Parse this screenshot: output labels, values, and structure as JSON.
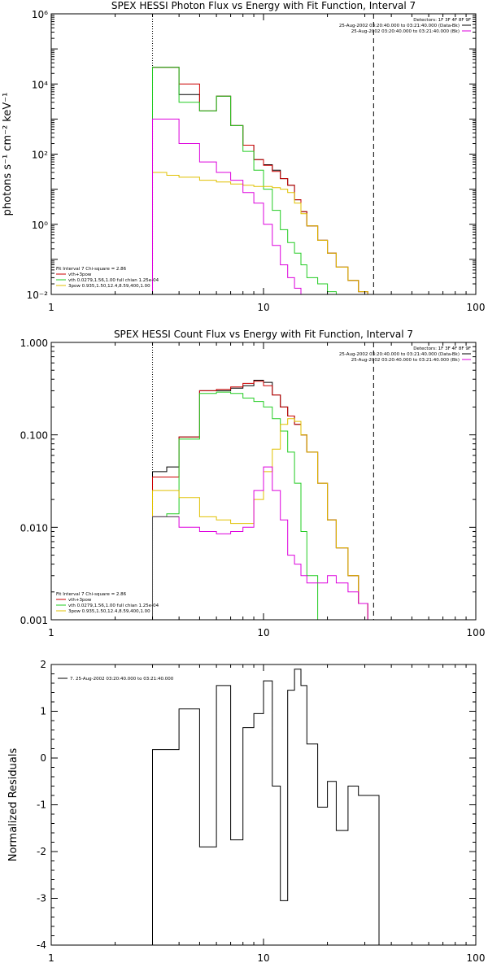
{
  "chart_data": [
    {
      "type": "line",
      "title": "SPEX HESSI Photon Flux vs Energy with Fit Function, Interval 7",
      "ylabel": "photons s⁻¹ cm⁻² keV⁻¹",
      "xlabel": "",
      "xscale": "log",
      "yscale": "log",
      "xlim": [
        1,
        100
      ],
      "ylim": [
        0.01,
        1000000
      ],
      "x_ticks": [
        "1",
        "10",
        "100"
      ],
      "y_ticks": [
        "10⁻²",
        "10⁰",
        "10²",
        "10⁴",
        "10⁶"
      ],
      "vlines": [
        {
          "x": 3,
          "style": "dotted"
        },
        {
          "x": 33,
          "style": "dashed"
        }
      ],
      "legend_top": {
        "detectors": "Detectors: 1F 3F 4F 8F 9F",
        "lines": [
          "25-Aug-2002 03:20:40.000 to 03:21:40.000 (Data-Bk)",
          "25-Aug-2002 03:20:40.000 to 03:21:40.000 (Bk)"
        ]
      },
      "legend_bottom": {
        "fit": "Fit Interval 7   Chi-square = 2.86",
        "lines": [
          "vth+3pow",
          "vth 0.0279,1.56,1.00  full chian 1.25e-04",
          "3pow 0.935,1.50,12.4,8.59,400,1.00"
        ]
      },
      "edges": [
        3,
        3.5,
        4,
        5,
        6,
        7,
        8,
        9,
        10,
        11,
        12,
        13,
        14,
        15,
        16,
        18,
        20,
        22,
        25,
        28,
        31,
        35
      ],
      "series": [
        {
          "name": "",
          "color": "#000000",
          "values": [
            30000,
            30000,
            5000,
            1700,
            4500,
            650,
            180,
            70,
            50,
            35,
            20,
            13,
            5,
            2.3,
            0.9,
            0.35,
            0.15,
            0.06,
            0.025,
            0.012,
            0.01
          ]
        },
        {
          "name": "vth+3pow",
          "color": "#cc0000",
          "values": [
            30000,
            30000,
            10000,
            1700,
            4500,
            650,
            180,
            70,
            48,
            32,
            20,
            13,
            5,
            2.3,
            0.9,
            0.35,
            0.15,
            0.06,
            0.025,
            0.012,
            0.01
          ]
        },
        {
          "name": "vth 0.0279,1.56,1.00  full chian 1.25e-04",
          "color": "#22cc22",
          "values": [
            30000,
            30000,
            3000,
            1700,
            4500,
            650,
            120,
            35,
            10,
            2.5,
            0.7,
            0.3,
            0.15,
            0.07,
            0.03,
            0.02,
            0.012,
            0.01,
            0.01,
            0.01,
            0.01
          ]
        },
        {
          "name": "3pow 0.935,1.50,12.4,8.59,400,1.00",
          "color": "#e0c000",
          "values": [
            30,
            25,
            22,
            18,
            16,
            14,
            13,
            12,
            12,
            11,
            10,
            8,
            4,
            2,
            0.9,
            0.35,
            0.15,
            0.06,
            0.025,
            0.012,
            0.01
          ]
        },
        {
          "name": "",
          "color": "#dd00dd",
          "values": [
            1000,
            1000,
            200,
            60,
            30,
            18,
            8,
            4,
            1,
            0.25,
            0.07,
            0.03,
            0.015,
            0.01,
            0.01,
            0.01,
            0.01,
            0.01,
            0.01,
            0.01,
            0.01
          ]
        }
      ]
    },
    {
      "type": "line",
      "title": "SPEX HESSI Count Flux vs Energy with Fit Function, Interval 7",
      "ylabel": "",
      "xlabel": "",
      "xscale": "log",
      "yscale": "log",
      "xlim": [
        1,
        100
      ],
      "ylim": [
        0.001,
        1
      ],
      "x_ticks": [
        "1",
        "10",
        "100"
      ],
      "y_ticks": [
        "0.001",
        "0.010",
        "0.100",
        "1.000"
      ],
      "vlines": [
        {
          "x": 3,
          "style": "dotted"
        },
        {
          "x": 33,
          "style": "dashed"
        }
      ],
      "legend_top": {
        "detectors": "Detectors: 1F 3F 4F 8F 9F",
        "lines": [
          "25-Aug-2002 03:20:40.000 to 03:21:40.000 (Data-Bk)",
          "25-Aug-2002 03:20:40.000 to 03:21:40.000 (Bk)"
        ]
      },
      "legend_bottom": {
        "fit": "Fit Interval 7   Chi-square = 2.86",
        "lines": [
          "vth+3pow",
          "vth 0.0279,1.56,1.00  full chian 1.25e-04",
          "3pow 0.935,1.50,12.4,8.59,400,1.00"
        ]
      },
      "edges": [
        3,
        3.5,
        4,
        5,
        6,
        7,
        8,
        9,
        10,
        11,
        12,
        13,
        14,
        15,
        16,
        18,
        20,
        22,
        25,
        28,
        31,
        35
      ],
      "series": [
        {
          "name": "",
          "color": "#000000",
          "values": [
            0.04,
            0.045,
            0.095,
            0.3,
            0.3,
            0.32,
            0.34,
            0.39,
            0.37,
            0.27,
            0.2,
            0.16,
            0.13,
            0.1,
            0.065,
            0.03,
            0.012,
            0.006,
            0.003,
            0.0015,
            0.001
          ]
        },
        {
          "name": "vth+3pow",
          "color": "#cc0000",
          "values": [
            0.035,
            0.035,
            0.095,
            0.3,
            0.31,
            0.33,
            0.36,
            0.38,
            0.34,
            0.27,
            0.2,
            0.16,
            0.13,
            0.1,
            0.065,
            0.03,
            0.012,
            0.006,
            0.003,
            0.0015,
            0.001
          ]
        },
        {
          "name": "vth 0.0279,1.56,1.00  full chian 1.25e-04",
          "color": "#22cc22",
          "values": [
            0.013,
            0.014,
            0.09,
            0.28,
            0.29,
            0.28,
            0.25,
            0.23,
            0.2,
            0.15,
            0.11,
            0.065,
            0.03,
            0.009,
            0.003,
            0.001,
            0.001,
            0.001,
            0.001,
            0.001,
            0.001
          ]
        },
        {
          "name": "3pow 0.935,1.50,12.4,8.59,400,1.00",
          "color": "#e0c000",
          "values": [
            0.025,
            0.025,
            0.021,
            0.013,
            0.012,
            0.011,
            0.011,
            0.02,
            0.04,
            0.07,
            0.13,
            0.15,
            0.14,
            0.1,
            0.065,
            0.03,
            0.012,
            0.006,
            0.003,
            0.0015,
            0.001
          ]
        },
        {
          "name": "",
          "color": "#dd00dd",
          "values": [
            0.013,
            0.013,
            0.01,
            0.009,
            0.0085,
            0.009,
            0.01,
            0.025,
            0.045,
            0.025,
            0.012,
            0.005,
            0.004,
            0.003,
            0.0025,
            0.0025,
            0.003,
            0.0025,
            0.002,
            0.0015,
            0.001
          ]
        },
        {
          "name": "",
          "color": "#555555",
          "values": [
            0.013,
            0.013,
            null,
            null,
            null,
            null,
            null,
            null,
            null,
            null,
            null,
            null,
            null,
            null,
            null,
            null,
            null,
            null,
            null,
            null,
            null
          ]
        }
      ]
    },
    {
      "type": "line",
      "title": "",
      "ylabel": "Normalized Residuals",
      "xlabel": "",
      "xscale": "log",
      "yscale": "linear",
      "xlim": [
        1,
        100
      ],
      "ylim": [
        -4,
        2
      ],
      "x_ticks": [
        "1",
        "10",
        "100"
      ],
      "y_ticks": [
        "-4",
        "-3",
        "-2",
        "-1",
        "0",
        "1",
        "2"
      ],
      "legend": "7. 25-Aug-2002 03:20:40.000 to 03:21:40.000",
      "edges": [
        3,
        3.5,
        4,
        5,
        6,
        7,
        8,
        9,
        10,
        11,
        12,
        13,
        14,
        15,
        16,
        18,
        20,
        22,
        25,
        28,
        31,
        35
      ],
      "series": [
        {
          "name": "",
          "color": "#000000",
          "values": [
            0.18,
            0.18,
            1.05,
            -1.9,
            1.55,
            -1.75,
            0.65,
            0.95,
            1.65,
            -0.6,
            -3.05,
            1.45,
            1.9,
            1.55,
            0.3,
            -1.05,
            -0.5,
            -1.55,
            -0.6,
            -0.8,
            -0.8
          ]
        }
      ]
    }
  ]
}
